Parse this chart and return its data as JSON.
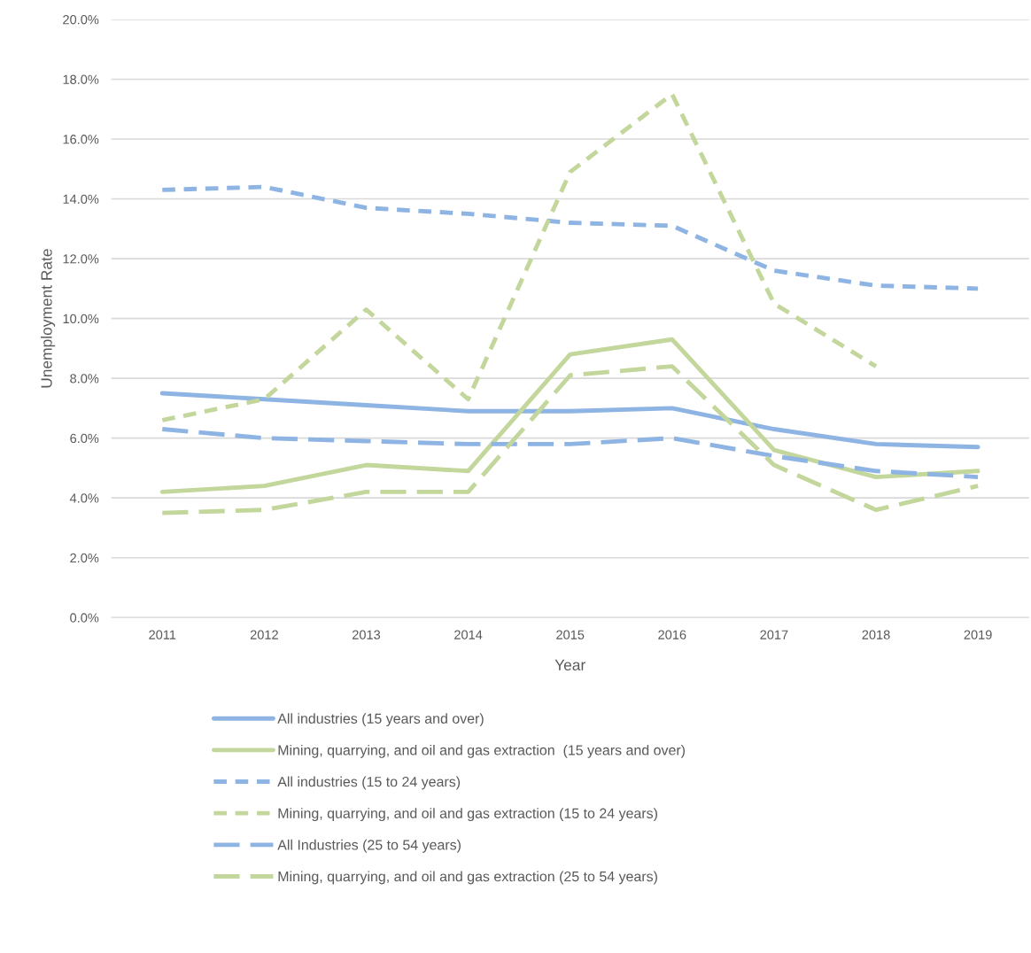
{
  "chart_data": {
    "type": "line",
    "xlabel": "Year",
    "ylabel": "Unemployment Rate",
    "categories": [
      "2011",
      "2012",
      "2013",
      "2014",
      "2015",
      "2016",
      "2017",
      "2018",
      "2019"
    ],
    "series": [
      {
        "name": "All industries (15 years and over)",
        "color": "#8eb4e3",
        "line_style": "solid",
        "values": [
          7.5,
          7.3,
          7.1,
          6.9,
          6.9,
          7.0,
          6.3,
          5.8,
          5.7
        ]
      },
      {
        "name": "Mining, quarrying, and oil and gas extraction  (15 years and over)",
        "color": "#c3d69b",
        "line_style": "solid",
        "values": [
          4.2,
          4.4,
          5.1,
          4.9,
          8.8,
          9.3,
          5.6,
          4.7,
          4.9
        ]
      },
      {
        "name": "All industries (15 to 24 years)",
        "color": "#8eb4e3",
        "line_style": "dashed",
        "values": [
          14.3,
          14.4,
          13.7,
          13.5,
          13.2,
          13.1,
          11.6,
          11.1,
          11.0
        ]
      },
      {
        "name": "Mining, quarrying, and oil and gas extraction (15 to 24 years)",
        "color": "#c3d69b",
        "line_style": "dashed",
        "values": [
          6.6,
          7.3,
          10.3,
          7.3,
          14.9,
          17.5,
          10.5,
          8.4,
          null
        ]
      },
      {
        "name": "All Industries (25 to 54 years)",
        "color": "#8eb4e3",
        "line_style": "dashdot",
        "values": [
          6.3,
          6.0,
          5.9,
          5.8,
          5.8,
          6.0,
          5.4,
          4.9,
          4.7
        ]
      },
      {
        "name": "Mining, quarrying, and oil and gas extraction (25 to 54 years)",
        "color": "#c3d69b",
        "line_style": "dashdot",
        "values": [
          3.5,
          3.6,
          4.2,
          4.2,
          8.1,
          8.4,
          5.1,
          3.6,
          4.4
        ]
      }
    ],
    "ylim": [
      0,
      20
    ],
    "yticks": [
      {
        "value": 0,
        "label": "0.0%"
      },
      {
        "value": 2,
        "label": "2.0%"
      },
      {
        "value": 4,
        "label": "4.0%"
      },
      {
        "value": 6,
        "label": "6.0%"
      },
      {
        "value": 8,
        "label": "8.0%"
      },
      {
        "value": 10,
        "label": "10.0%"
      },
      {
        "value": 12,
        "label": "12.0%"
      },
      {
        "value": 14,
        "label": "14.0%"
      },
      {
        "value": 16,
        "label": "16.0%"
      },
      {
        "value": 18,
        "label": "18.0%"
      },
      {
        "value": 20,
        "label": "20.0%"
      }
    ],
    "grid": "y",
    "legend": "bottom",
    "marker": "none"
  }
}
